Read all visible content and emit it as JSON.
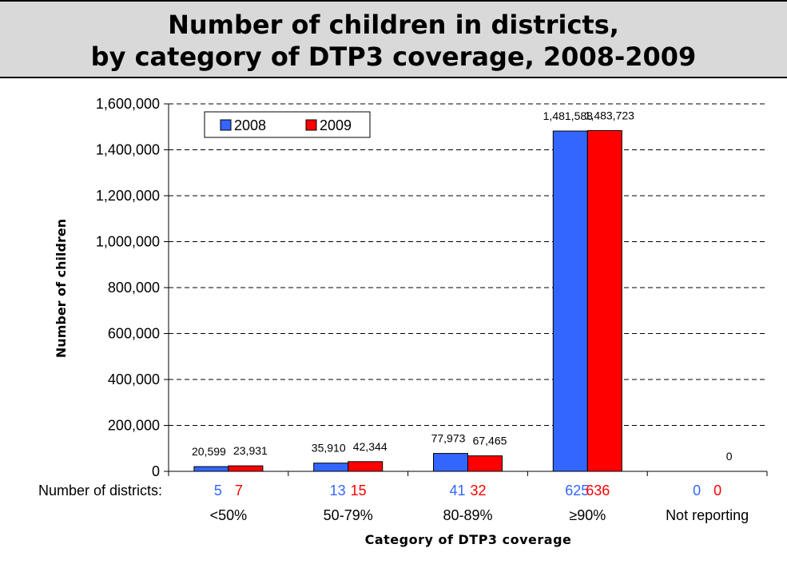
{
  "title": {
    "line1": "Number of children in districts,",
    "line2": "by category of DTP3 coverage, 2008-2009"
  },
  "row_label": "Number of districts:",
  "colors": {
    "2008": "#3366ff",
    "2009": "#ff0000",
    "title_band": "#d9d9d9"
  },
  "chart_data": {
    "type": "bar",
    "title": "Number of children in districts, by category of DTP3 coverage, 2008-2009",
    "xlabel": "Category of DTP3 coverage",
    "ylabel": "Number of children",
    "ylim": [
      0,
      1600000
    ],
    "ytick_step": 200000,
    "yticks": [
      "0",
      "200,000",
      "400,000",
      "600,000",
      "800,000",
      "1,000,000",
      "1,200,000",
      "1,400,000",
      "1,600,000"
    ],
    "grid": "horizontal dashed",
    "legend_position": "top-left",
    "categories": [
      "<50%",
      "50-79%",
      "80-89%",
      "≥90%",
      "Not reporting"
    ],
    "series": [
      {
        "name": "2008",
        "color": "#3366ff",
        "values": [
          20599,
          35910,
          77973,
          1481588,
          0
        ],
        "labels": [
          "20,599",
          "35,910",
          "77,973",
          "1,481,588",
          ""
        ],
        "district_counts": [
          "5",
          "13",
          "41",
          "625",
          "0"
        ]
      },
      {
        "name": "2009",
        "color": "#ff0000",
        "values": [
          23931,
          42344,
          67465,
          1483723,
          0
        ],
        "labels": [
          "23,931",
          "42,344",
          "67,465",
          "1,483,723",
          "0"
        ],
        "district_counts": [
          "7",
          "15",
          "32",
          "636",
          "0"
        ]
      }
    ]
  }
}
